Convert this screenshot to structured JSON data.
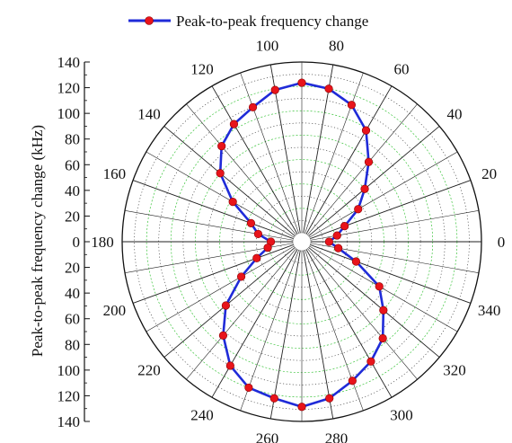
{
  "chart_data": {
    "type": "polar-line",
    "legend_position": "top",
    "ylabel": "Peak-to-peak frequency change (kHz)",
    "radial_range": [
      0,
      140
    ],
    "radial_ticks": [
      140,
      120,
      100,
      80,
      60,
      40,
      20,
      0,
      20,
      40,
      60,
      80,
      100,
      120,
      140
    ],
    "angle_ticks_deg": [
      0,
      20,
      40,
      60,
      80,
      100,
      120,
      140,
      160,
      180,
      200,
      220,
      240,
      260,
      280,
      300,
      320,
      340
    ],
    "colors": {
      "line": "#1f2bd8",
      "marker": "#e8141b",
      "axis": "#111111",
      "spoke": "#222222",
      "minor_grid": "#2f2f2f",
      "green_grid": "#3cc43c"
    },
    "series": [
      {
        "name": "Peak-to-peak frequency change",
        "theta": [
          0,
          10,
          20,
          30,
          40,
          50,
          60,
          70,
          80,
          90,
          100,
          110,
          120,
          130,
          140,
          150,
          160,
          170,
          180,
          190,
          200,
          210,
          220,
          230,
          240,
          250,
          260,
          270,
          280,
          290,
          300,
          310,
          320,
          330,
          340,
          350
        ],
        "r": [
          15,
          22,
          30,
          46,
          60,
          78,
          98,
          112,
          120,
          123,
          119,
          110,
          104,
          95,
          80,
          58,
          37,
          29,
          18,
          21,
          32,
          50,
          74,
          93,
          110,
          120,
          123,
          128,
          123,
          114,
          106,
          96,
          80,
          66,
          40,
          23
        ]
      }
    ]
  }
}
